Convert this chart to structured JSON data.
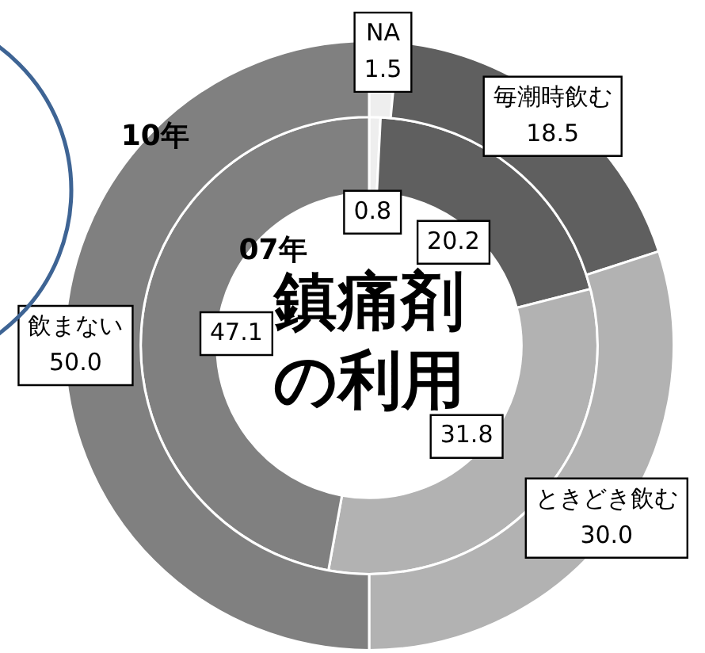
{
  "chart_data": {
    "type": "donut",
    "title": "鎮痛剤の利用",
    "categories": [
      "NA",
      "毎潮時飲む",
      "ときどき飲む",
      "飲まない"
    ],
    "colors": [
      "#eeeeee",
      "#5f5f5f",
      "#b2b2b2",
      "#808080"
    ],
    "series": [
      {
        "name": "10年",
        "values": [
          1.5,
          18.5,
          30.0,
          50.0
        ],
        "value_labels": [
          "1.5",
          "18.5",
          "30.0",
          "50.0"
        ]
      },
      {
        "name": "07年",
        "values": [
          0.8,
          20.2,
          31.8,
          47.1
        ],
        "value_labels": [
          "0.8",
          "20.2",
          "31.8",
          "47.1"
        ]
      }
    ],
    "legend": false
  }
}
